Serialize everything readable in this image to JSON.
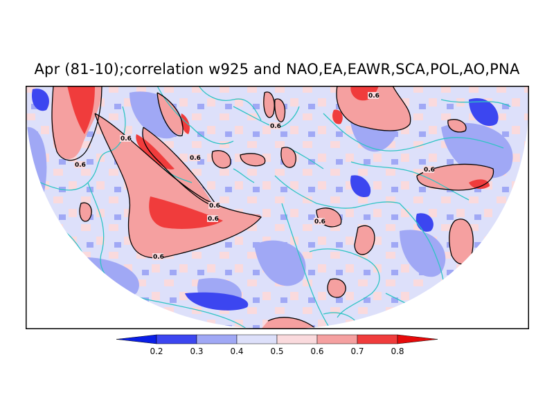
{
  "title": "Apr (81-10);correlation w925 and NAO,EA,EAWR,SCA,POL,AO,PNA",
  "contour_label": "0.6",
  "colorbar": {
    "ticks": [
      "0.2",
      "0.3",
      "0.4",
      "0.5",
      "0.6",
      "0.7",
      "0.8"
    ],
    "colors": [
      "#0a1ee6",
      "#3c46f0",
      "#a0a8f5",
      "#dde0fa",
      "#fadadd",
      "#f5a0a0",
      "#f03c3c",
      "#e60a0a"
    ]
  },
  "colors": {
    "coastline": "#2ec4c4",
    "frame": "#000000",
    "contour": "#000000"
  }
}
